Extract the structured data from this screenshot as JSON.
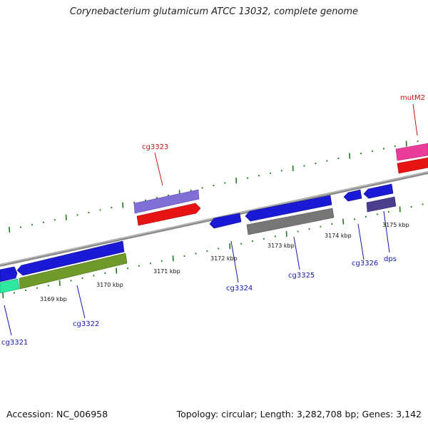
{
  "title": "Corynebacterium glutamicum ATCC 13032, complete genome",
  "accession_text": "Accession: NC_006958",
  "topology_text": "Topology: circular; Length: 3,282,708 bp; Genes: 3,142",
  "kbp_labels": [
    "3169 kbp",
    "3170 kbp",
    "3171 kbp",
    "3172 kbp",
    "3173 kbp",
    "3174 kbp",
    "3175 kbp"
  ],
  "gene_labels": {
    "cg3321": "cg3321",
    "cg3322": "cg3322",
    "cg3323": "cg3323",
    "cg3324": "cg3324",
    "cg3325": "cg3325",
    "cg3326": "cg3326",
    "dps": "dps",
    "mutM2": "mutM2"
  },
  "colors": {
    "backbone": "#8c8c8c",
    "tick": "#1e7a1e",
    "cds_blue": "#1a1ad6",
    "cds_red": "#e81414",
    "cds_purple": "#7f6fd6",
    "cds_olive": "#6f9a2a",
    "cds_gray": "#777777",
    "cds_teal": "#2ee8a0",
    "cds_pink": "#ea3c9a",
    "cds_dark_purple": "#4a3f8c",
    "label_blue": "#1515b4",
    "label_red": "#c81414"
  }
}
